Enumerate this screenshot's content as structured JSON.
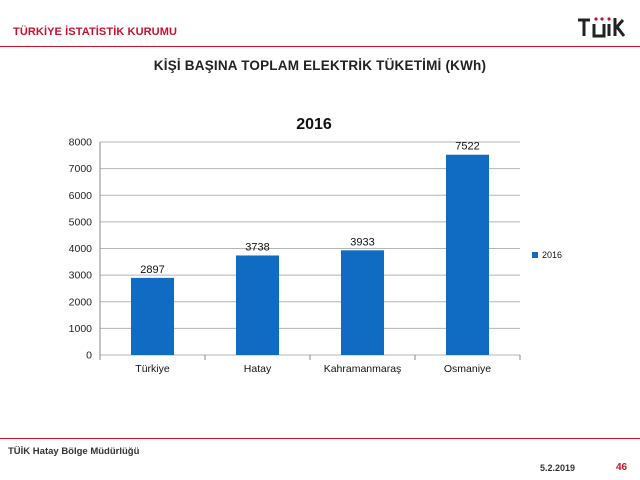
{
  "header": {
    "org_name": "TÜRKİYE İSTATİSTİK KURUMU",
    "logo_text": "TÜİK"
  },
  "slide": {
    "title": "KİŞİ BAŞINA TOPLAM ELEKTRİK TÜKETİMİ (KWh)"
  },
  "chart_data": {
    "type": "bar",
    "title": "2016",
    "categories": [
      "Türkiye",
      "Hatay",
      "Kahramanmaraş",
      "Osmaniye"
    ],
    "series": [
      {
        "name": "2016",
        "values": [
          2897,
          3738,
          3933,
          7522
        ],
        "color": "#0f6cc2"
      }
    ],
    "data_labels": [
      "2897",
      "3738",
      "3933",
      "7522"
    ],
    "ylim": [
      0,
      8000
    ],
    "yticks": [
      0,
      1000,
      2000,
      3000,
      4000,
      5000,
      6000,
      7000,
      8000
    ],
    "ytick_labels": [
      "0",
      "1000",
      "2000",
      "3000",
      "4000",
      "5000",
      "6000",
      "7000",
      "8000"
    ],
    "grid": true,
    "legend": "right"
  },
  "footer": {
    "org": "TÜİK Hatay Bölge Müdürlüğü",
    "date": "5.2.2019",
    "page": "46"
  },
  "colors": {
    "accent": "#c8102e",
    "bar": "#0f6cc2"
  }
}
